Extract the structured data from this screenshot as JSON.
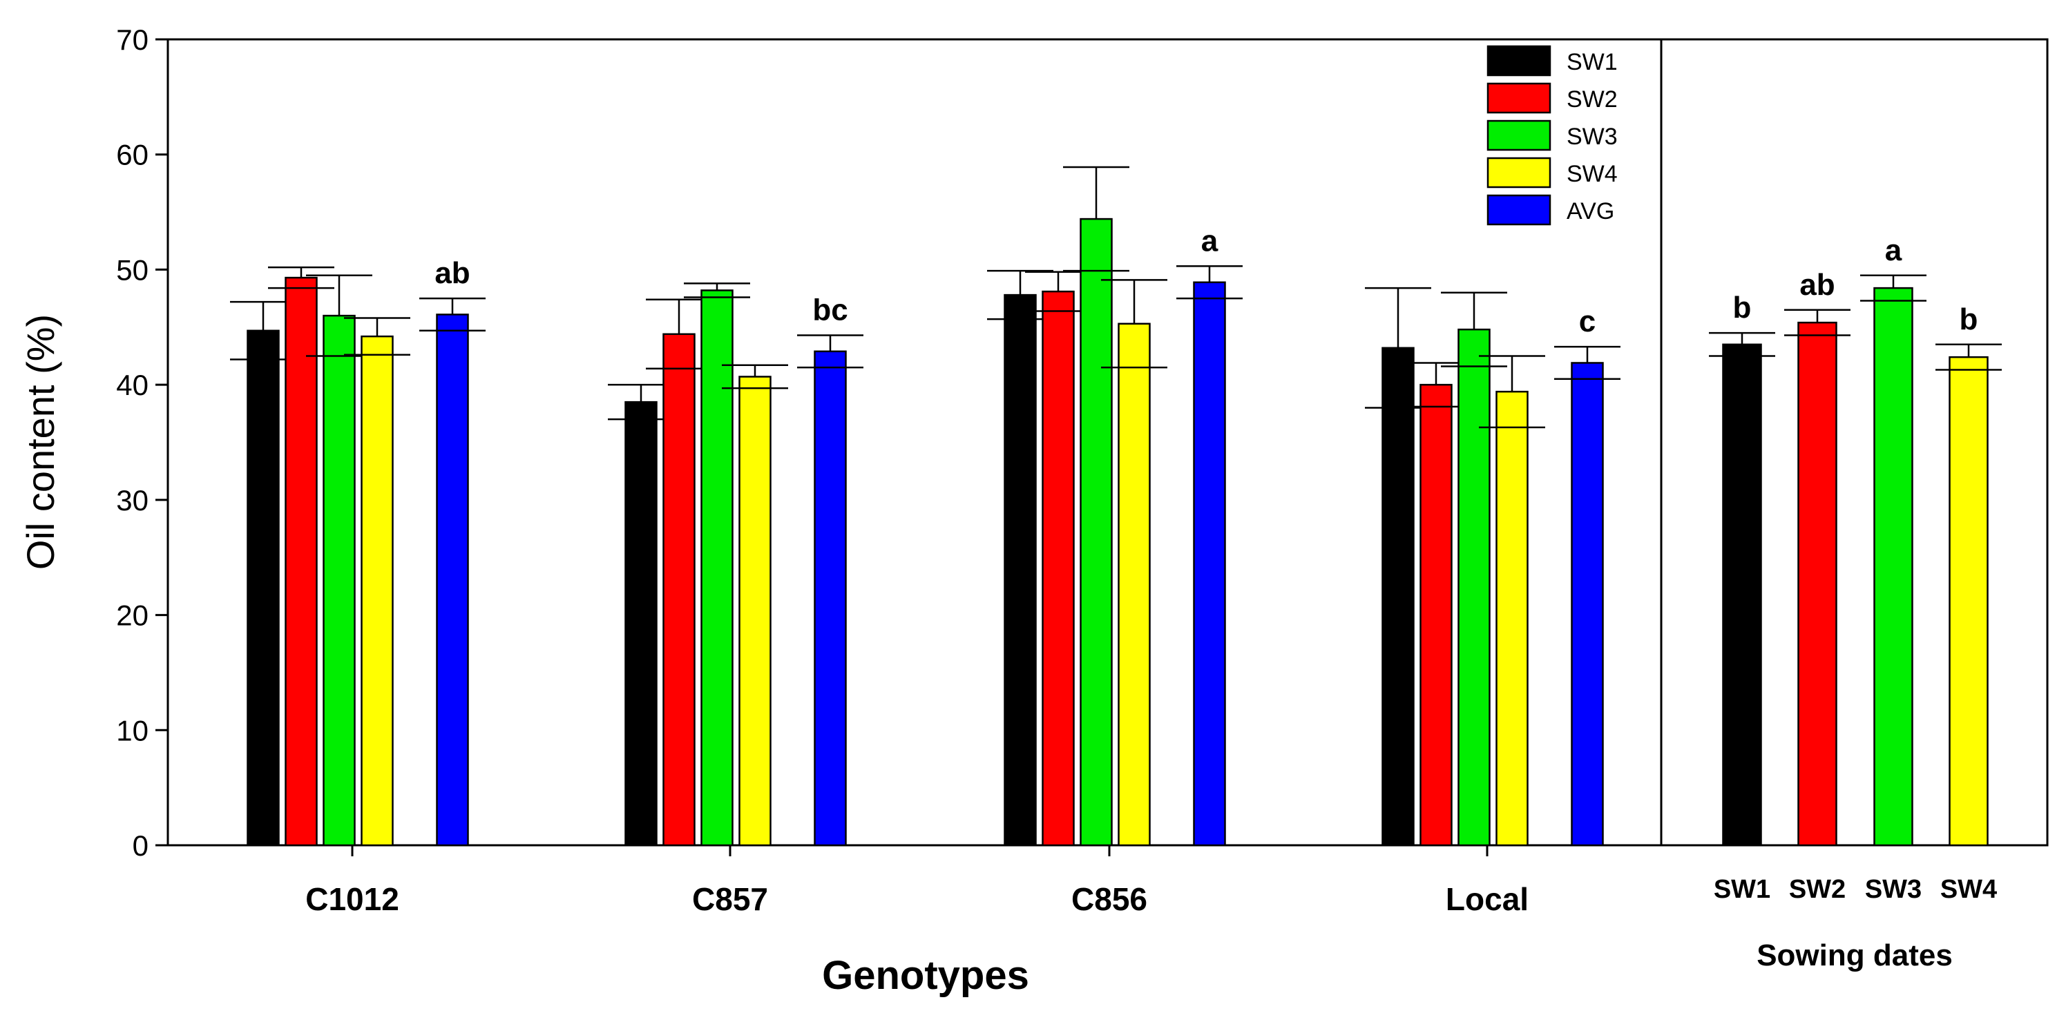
{
  "chart_data": {
    "type": "bar",
    "ylabel": "Oil content  (%)",
    "ylim": [
      0,
      70
    ],
    "yticks": [
      0,
      10,
      20,
      30,
      40,
      50,
      60,
      70
    ],
    "colors": {
      "SW1": "#000000",
      "SW2": "#ff0000",
      "SW3": "#00ee00",
      "SW4": "#ffff00",
      "AVG": "#0000ff"
    },
    "legend": [
      "SW1",
      "SW2",
      "SW3",
      "SW4",
      "AVG"
    ],
    "panels": [
      {
        "name": "genotypes",
        "xlabel": "Genotypes",
        "categories": [
          "C1012",
          "C857",
          "C856",
          "Local"
        ],
        "series": [
          {
            "name": "SW1",
            "values": [
              44.7,
              38.5,
              47.8,
              43.2
            ],
            "errors": [
              2.5,
              1.5,
              2.1,
              5.2
            ]
          },
          {
            "name": "SW2",
            "values": [
              49.3,
              44.4,
              48.1,
              40.0
            ],
            "errors": [
              0.9,
              3.0,
              1.7,
              1.9
            ]
          },
          {
            "name": "SW3",
            "values": [
              46.0,
              48.2,
              54.4,
              44.8
            ],
            "errors": [
              3.5,
              0.6,
              4.5,
              3.2
            ]
          },
          {
            "name": "SW4",
            "values": [
              44.2,
              40.7,
              45.3,
              39.4
            ],
            "errors": [
              1.6,
              1.0,
              3.8,
              3.1
            ]
          },
          {
            "name": "AVG",
            "values": [
              46.1,
              42.9,
              48.9,
              41.9
            ],
            "errors": [
              1.4,
              1.4,
              1.4,
              1.4
            ]
          }
        ],
        "letters": [
          "ab",
          "bc",
          "a",
          "c"
        ]
      },
      {
        "name": "sowing_dates",
        "xlabel": "Sowing dates",
        "categories": [
          "SW1",
          "SW2",
          "SW3",
          "SW4"
        ],
        "values": [
          43.5,
          45.4,
          48.4,
          42.4
        ],
        "errors": [
          1.0,
          1.1,
          1.1,
          1.1
        ],
        "letters": [
          "b",
          "ab",
          "a",
          "b"
        ]
      }
    ]
  }
}
